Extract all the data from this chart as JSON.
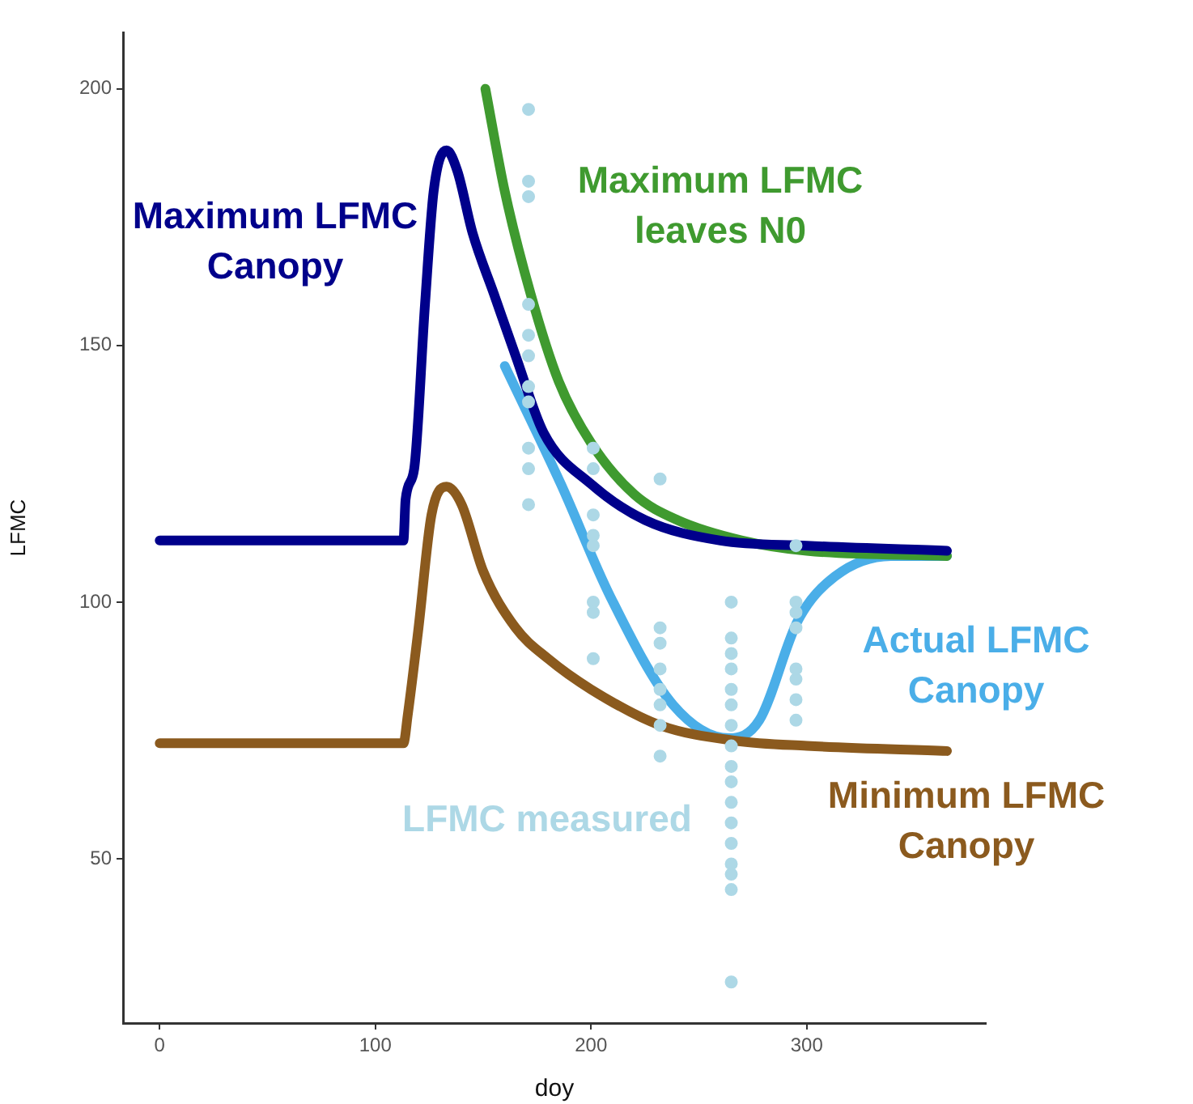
{
  "chart_data": {
    "type": "line",
    "xlabel": "doy",
    "ylabel": "LFMC",
    "xlim": [
      -17,
      383
    ],
    "xticks": [
      0,
      100,
      200,
      300
    ],
    "ylim": [
      18,
      211
    ],
    "yticks": [
      50,
      100,
      150,
      200
    ],
    "series": [
      {
        "name": "LFMC measured",
        "type": "scatter",
        "color": "#add8e6",
        "x": [
          171,
          171,
          171,
          171,
          171,
          171,
          171,
          171,
          171,
          171,
          171,
          201,
          201,
          201,
          201,
          201,
          201,
          201,
          201,
          232,
          232,
          232,
          232,
          232,
          232,
          232,
          232,
          265,
          265,
          265,
          265,
          265,
          265,
          265,
          265,
          265,
          265,
          265,
          265,
          265,
          265,
          265,
          265,
          265,
          295,
          295,
          295,
          295,
          295,
          295,
          295,
          295
        ],
        "values": [
          196,
          182,
          179,
          158,
          152,
          148,
          142,
          139,
          130,
          126,
          119,
          130,
          126,
          117,
          113,
          111,
          100,
          98,
          89,
          124,
          95,
          92,
          87,
          83,
          80,
          76,
          70,
          100,
          93,
          90,
          87,
          83,
          80,
          76,
          72,
          68,
          65,
          61,
          57,
          53,
          49,
          47,
          44,
          26,
          111,
          100,
          98,
          95,
          87,
          85,
          81,
          77
        ]
      },
      {
        "name": "Maximum LFMC Canopy",
        "color": "#00008b",
        "x": [
          0,
          113,
          114,
          118,
          123,
          127,
          133,
          138,
          145,
          155,
          165,
          178,
          200,
          225,
          260,
          300,
          365
        ],
        "values": [
          112,
          112,
          120,
          126,
          158,
          180,
          188,
          184,
          172,
          160,
          148,
          133,
          123,
          116,
          112,
          111,
          110
        ]
      },
      {
        "name": "Maximum LFMC leaves N0",
        "color": "#3f9a2f",
        "x": [
          151,
          160,
          172,
          185,
          200,
          220,
          240,
          270,
          300,
          365
        ],
        "values": [
          200,
          180,
          160,
          143,
          131,
          121,
          116,
          112,
          110,
          109
        ]
      },
      {
        "name": "Minimum LFMC Canopy",
        "color": "#8b5a1e",
        "x": [
          0,
          113,
          115,
          120,
          126,
          133,
          140,
          150,
          165,
          180,
          200,
          232,
          267,
          300,
          365
        ],
        "values": [
          72.5,
          72.5,
          78,
          95,
          117,
          122.5,
          119,
          106,
          95,
          89,
          83,
          76,
          73,
          72,
          71
        ]
      },
      {
        "name": "Actual LFMC Canopy",
        "color": "#4aaee8",
        "x": [
          160,
          186,
          209,
          238,
          264,
          278,
          296,
          313,
          339,
          365
        ],
        "values": [
          146,
          123,
          101,
          80,
          73.5,
          77,
          96.5,
          105,
          109,
          109
        ]
      }
    ]
  }
}
